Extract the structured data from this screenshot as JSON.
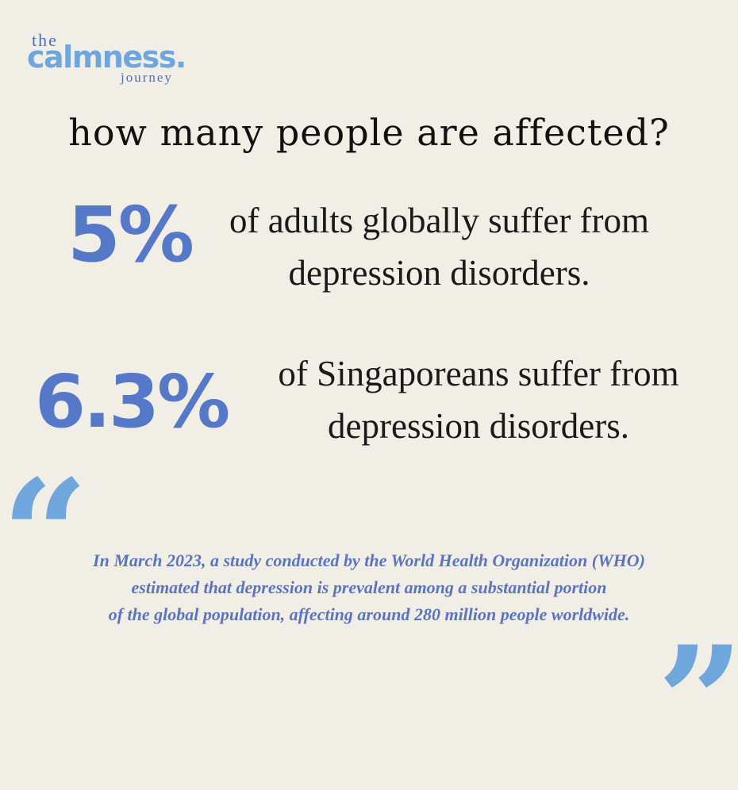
{
  "logo": {
    "the": "the",
    "main": "calmness.",
    "sub": "journey"
  },
  "headline": "how many people are affected?",
  "stats": [
    {
      "value": "5%",
      "lines": [
        "of adults globally suffer from",
        "depression disorders."
      ]
    },
    {
      "value": "6.3%",
      "lines": [
        "of Singaporeans suffer from",
        "depression disorders."
      ]
    }
  ],
  "quote": {
    "open_mark": "“",
    "close_mark": "”",
    "lines": [
      "In March 2023, a study conducted by the World Health Organization (WHO)",
      "estimated that depression is prevalent among a substantial portion",
      "of the global population, affecting around 280 million people worldwide."
    ]
  },
  "colors": {
    "background": "#f1eee6",
    "accent_dark": "#5578c8",
    "accent_light": "#6fa6dc",
    "text": "#111111"
  },
  "icons": [
    "open-quote-icon",
    "close-quote-icon"
  ]
}
